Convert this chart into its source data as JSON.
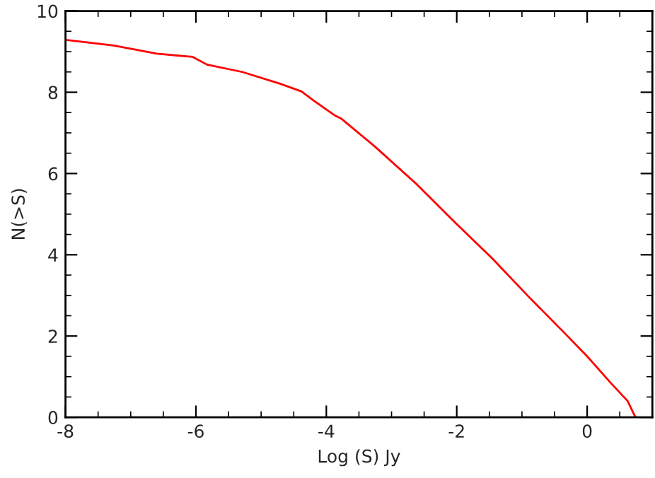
{
  "chart_data": {
    "type": "line",
    "xlabel": "Log (S) Jy",
    "ylabel": "N(>S)",
    "xlim": [
      -8,
      1
    ],
    "ylim": [
      0,
      10
    ],
    "xticks": [
      -8,
      -6,
      -4,
      -2,
      0
    ],
    "yticks": [
      0,
      2,
      4,
      6,
      8,
      10
    ],
    "grid": false,
    "series": [
      {
        "color": "#ff0000",
        "x": [
          -8,
          -7.26,
          -6.6,
          -6.05,
          -5.83,
          -5.29,
          -4.71,
          -4.38,
          -4.2,
          -3.86,
          -3.77,
          -3.26,
          -2.61,
          -2.03,
          -1.45,
          -0.91,
          -0.29,
          0,
          0.36,
          0.62,
          0.74
        ],
        "values": [
          9.29,
          9.15,
          8.95,
          8.87,
          8.68,
          8.5,
          8.21,
          8.02,
          7.8,
          7.42,
          7.35,
          6.67,
          5.73,
          4.8,
          3.9,
          2.99,
          1.98,
          1.5,
          0.85,
          0.4,
          0
        ]
      }
    ]
  }
}
